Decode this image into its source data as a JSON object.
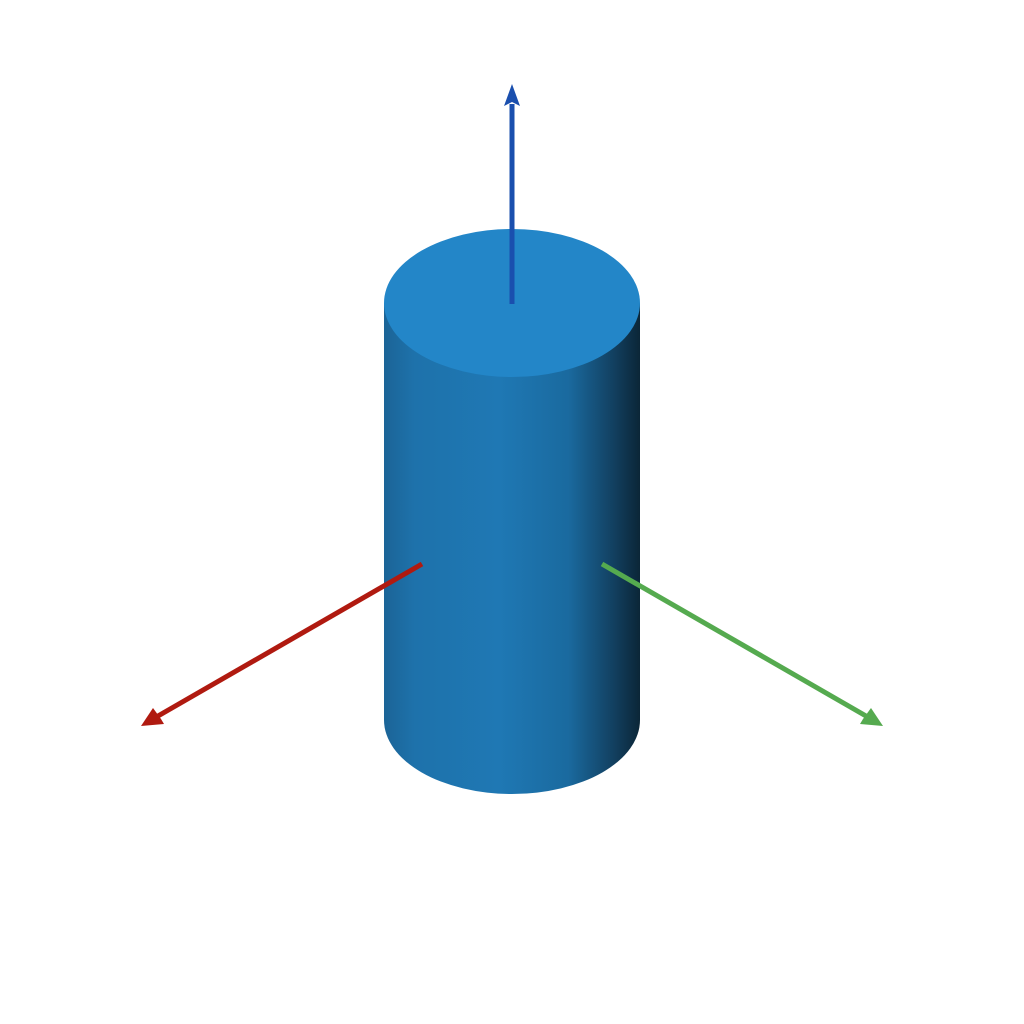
{
  "scene": {
    "background_color": "#ffffff",
    "object": "cylinder",
    "colors": {
      "cylinder_top": "#2386c8",
      "cylinder_side_light": "#1f78b4",
      "cylinder_side_mid": "#1a6a9f",
      "cylinder_side_dark": "#0b2637",
      "z_axis": "#1a4fae",
      "x_axis": "#b01a10",
      "y_axis": "#55aa4f"
    },
    "axes": [
      {
        "name": "x-axis",
        "direction": "lower-left",
        "color_key": "x_axis"
      },
      {
        "name": "y-axis",
        "direction": "lower-right",
        "color_key": "y_axis"
      },
      {
        "name": "z-axis",
        "direction": "up",
        "color_key": "z_axis"
      }
    ]
  }
}
